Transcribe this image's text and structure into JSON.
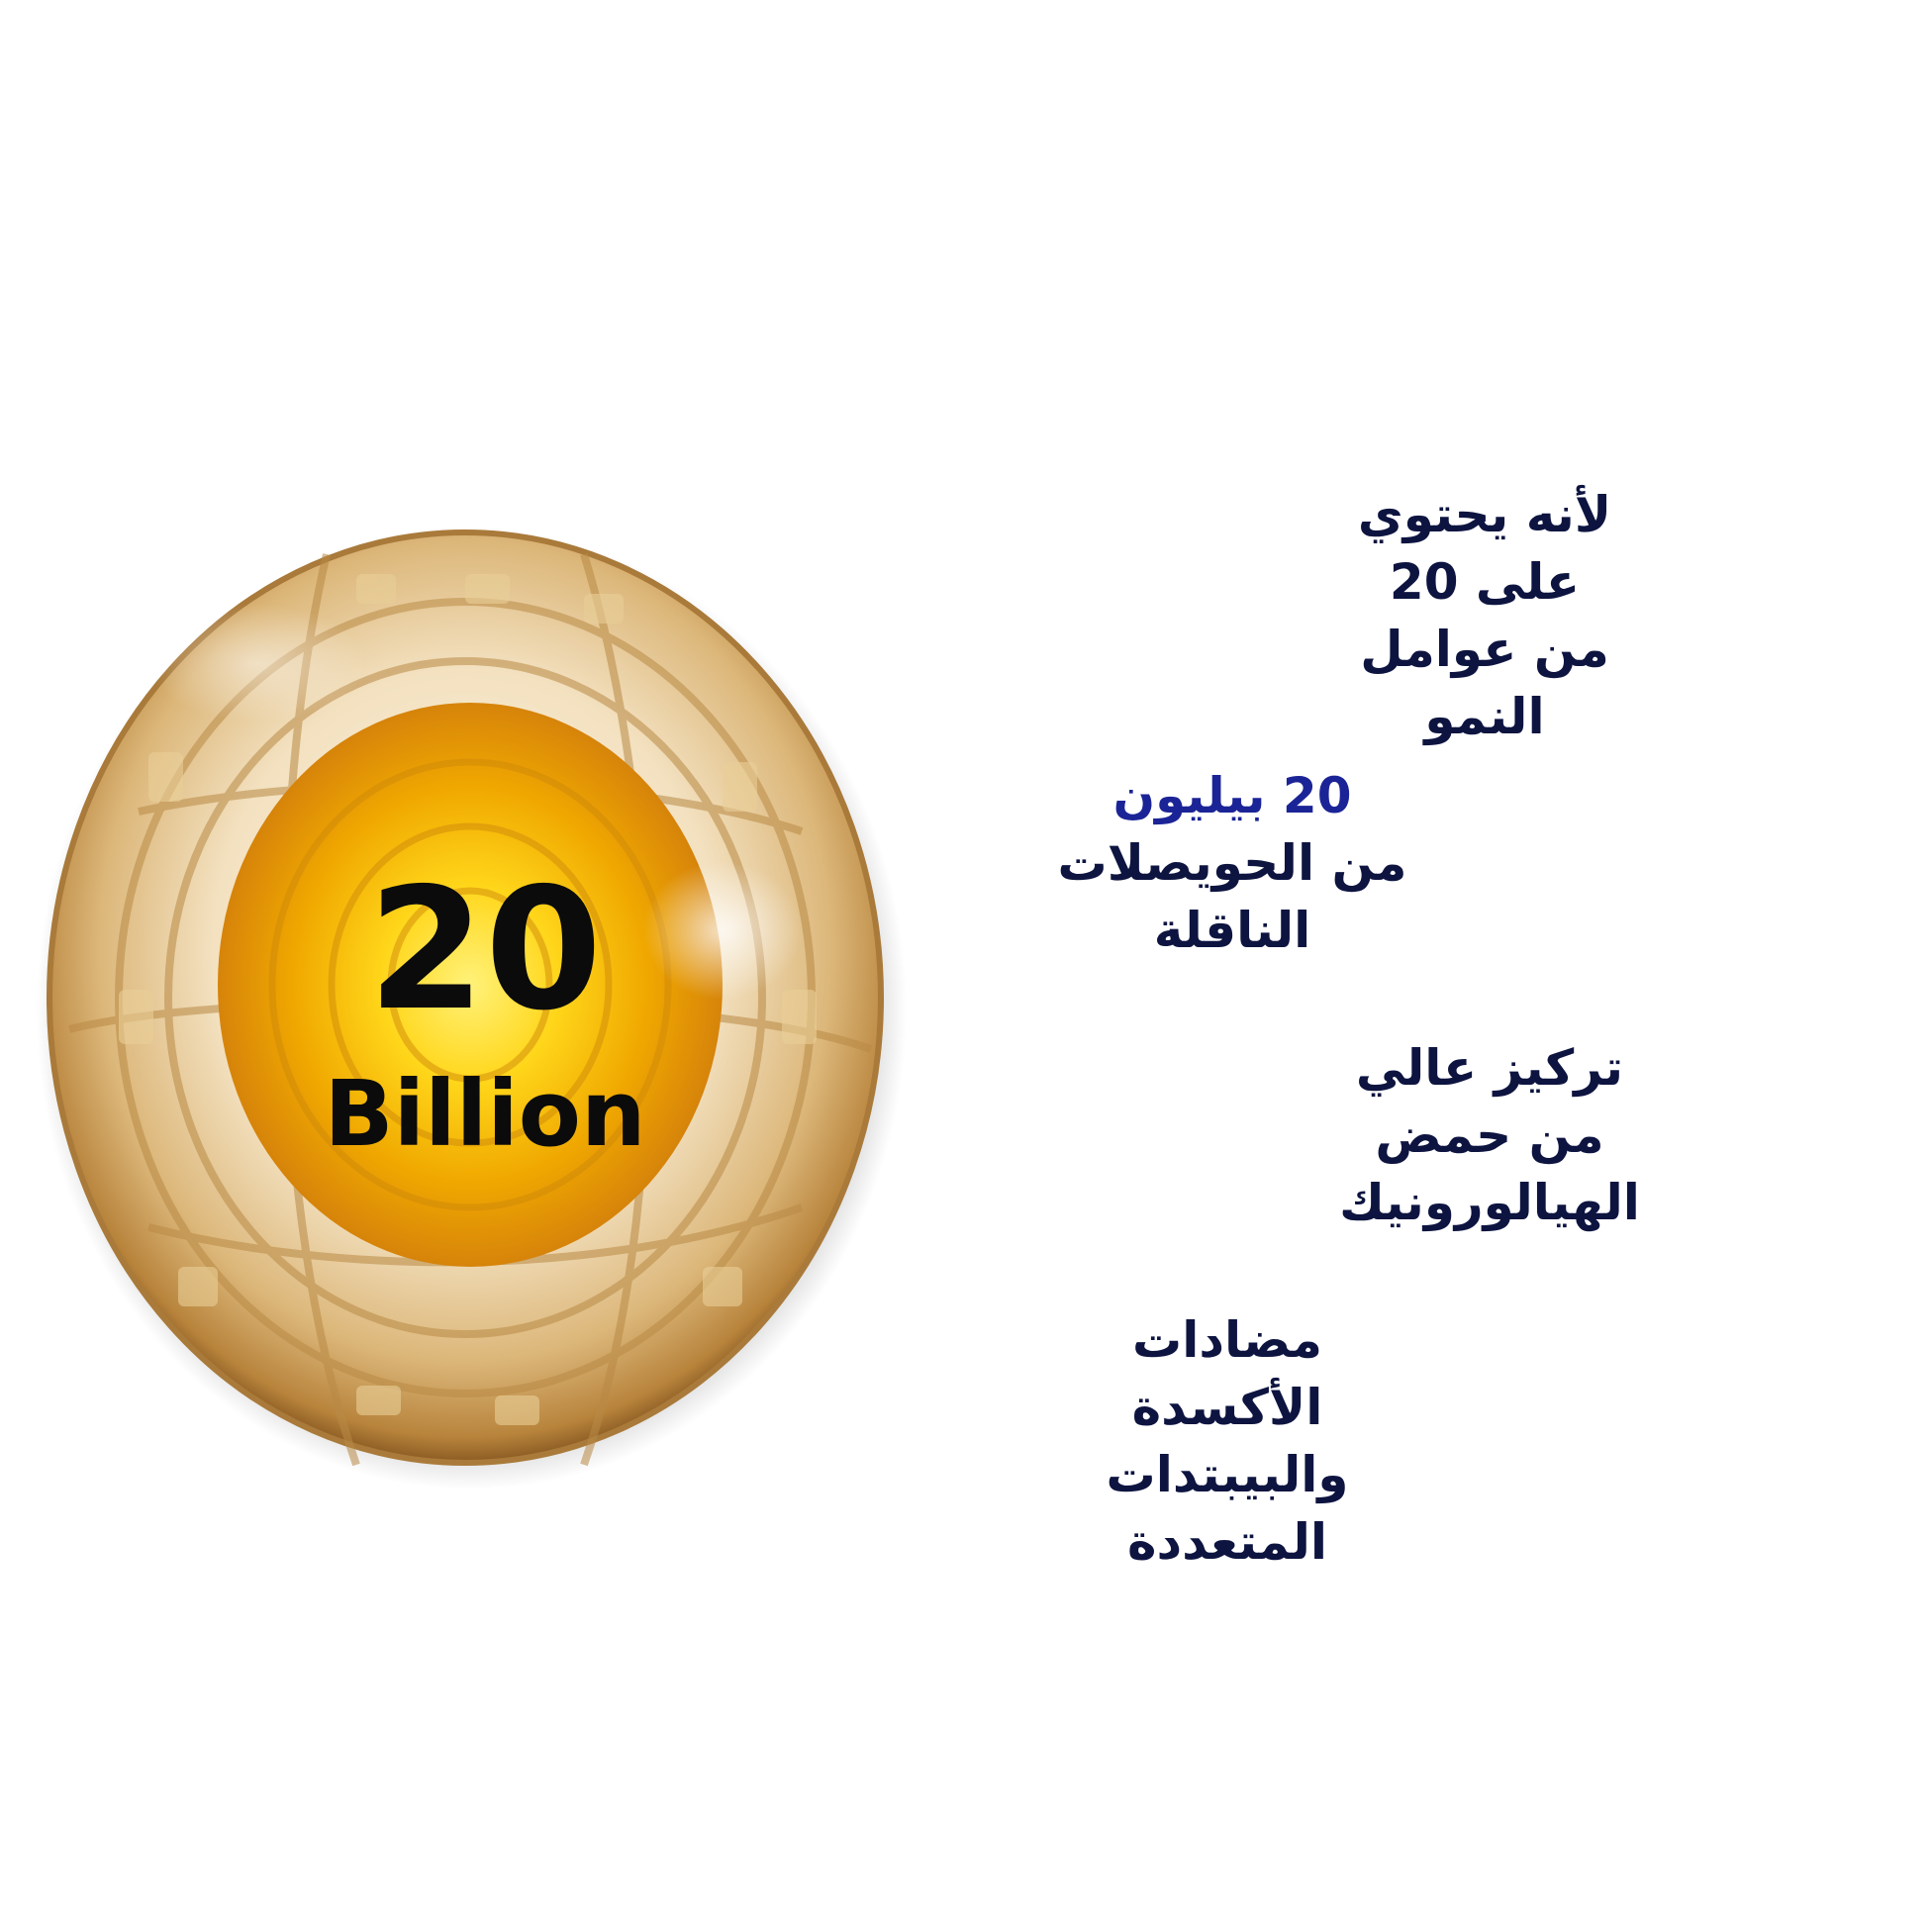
{
  "sphere": {
    "number": "20",
    "unit": "Billion"
  },
  "features": {
    "growth_factors": {
      "lines": [
        "لأنه يحتوي",
        "على 20",
        "من عوامل",
        "النمو"
      ]
    },
    "vesicles": {
      "highlight": "20 بيليون",
      "lines": [
        "من الحويصلات",
        "الناقلة"
      ]
    },
    "hyaluronic": {
      "lines": [
        "تركيز عالي",
        "من حمض",
        "الهيالورونيك"
      ]
    },
    "antioxidants": {
      "lines": [
        "مضادات",
        "الأكسدة",
        "والبيبتدات",
        "المتعددة"
      ]
    }
  },
  "colors": {
    "text_dark_navy": "#0d1440",
    "text_accent_blue": "#1b2496",
    "sphere_gold": "#f2c21c",
    "sphere_edge": "#c9a46a"
  }
}
